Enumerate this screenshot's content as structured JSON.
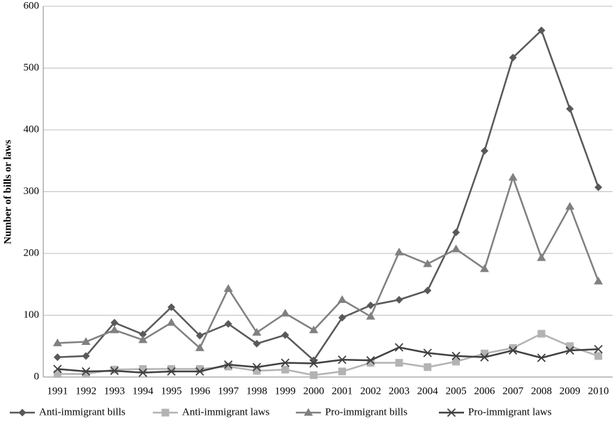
{
  "chart_data": {
    "type": "line",
    "y_label": "Number of bills or laws",
    "categories": [
      "1991",
      "1992",
      "1993",
      "1994",
      "1995",
      "1996",
      "1997",
      "1998",
      "1999",
      "2000",
      "2001",
      "2002",
      "2003",
      "2004",
      "2005",
      "2006",
      "2007",
      "2008",
      "2009",
      "2010"
    ],
    "ylim": [
      0,
      600
    ],
    "yticks": [
      0,
      100,
      200,
      300,
      400,
      500,
      600
    ],
    "grid": true,
    "legend": "bottom",
    "series": [
      {
        "name": "Anti-immigrant bills",
        "color": "#595959",
        "marker": "diamond",
        "values": [
          32,
          34,
          88,
          69,
          113,
          67,
          86,
          54,
          68,
          27,
          96,
          116,
          125,
          140,
          234,
          366,
          517,
          561,
          434,
          307
        ]
      },
      {
        "name": "Anti-immigrant laws",
        "color": "#b3b3b3",
        "marker": "square",
        "values": [
          5,
          5,
          12,
          13,
          13,
          13,
          17,
          10,
          12,
          3,
          9,
          23,
          23,
          16,
          25,
          38,
          47,
          70,
          50,
          34
        ]
      },
      {
        "name": "Pro-immigrant bills",
        "color": "#808080",
        "marker": "triangle",
        "values": [
          55,
          57,
          76,
          60,
          88,
          47,
          143,
          72,
          103,
          76,
          125,
          98,
          202,
          183,
          207,
          175,
          323,
          193,
          276,
          155
        ]
      },
      {
        "name": "Pro-immigrant laws",
        "color": "#404040",
        "marker": "x",
        "values": [
          13,
          9,
          10,
          7,
          9,
          9,
          20,
          16,
          23,
          22,
          28,
          27,
          48,
          39,
          34,
          32,
          43,
          31,
          43,
          45
        ]
      }
    ]
  }
}
